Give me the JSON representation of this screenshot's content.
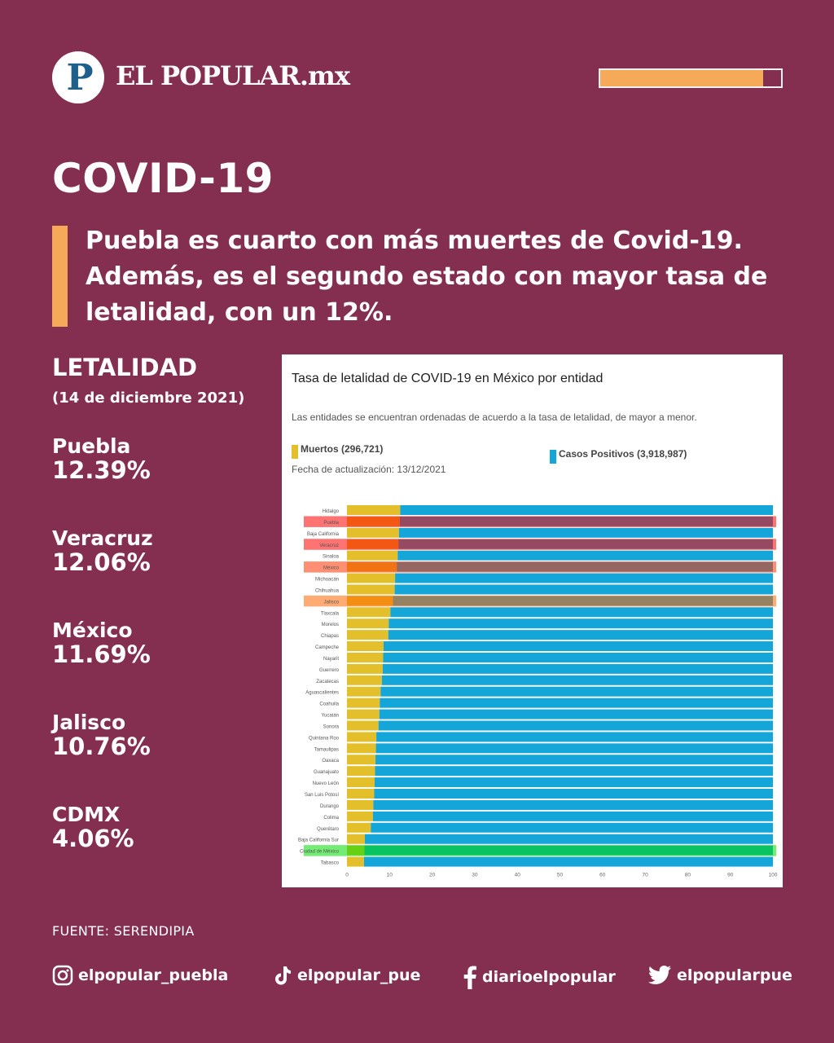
{
  "brand": {
    "logo_letter": "P",
    "name": "EL POPULAR.mx"
  },
  "progress": {
    "fraction": 0.9
  },
  "title": "COVID-19",
  "headline": "Puebla es cuarto con más muertes de Covid-19. Además, es el segundo estado con mayor tasa de letalidad, con un 12%.",
  "sidebar": {
    "title": "LETALIDAD",
    "date": "(14 de diciembre 2021)",
    "stats": [
      {
        "name": "Puebla",
        "value": "12.39%"
      },
      {
        "name": "Veracruz",
        "value": "12.06%"
      },
      {
        "name": "México",
        "value": "11.69%"
      },
      {
        "name": "Jalisco",
        "value": "10.76%"
      },
      {
        "name": "CDMX",
        "value": "4.06%"
      }
    ]
  },
  "chart_data": {
    "type": "bar",
    "orientation": "horizontal",
    "stacked": true,
    "title": "Tasa de letalidad de COVID-19 en México por entidad",
    "subtitle": "Las entidades se encuentran ordenadas de acuerdo a la tasa de letalidad, de mayor a menor.",
    "update_text": "Fecha de actualización: 13/12/2021",
    "legend": [
      {
        "label": "Muertos (296,721)",
        "color": "#e3c02b"
      },
      {
        "label": "Casos Positivos (3,918,987)",
        "color": "#14a5d9"
      }
    ],
    "xlim": [
      0,
      100
    ],
    "xticks": [
      0,
      10,
      20,
      30,
      40,
      50,
      60,
      70,
      80,
      90,
      100
    ],
    "categories": [
      "Hidalgo",
      "Puebla",
      "Baja California",
      "Veracruz",
      "Sinaloa",
      "México",
      "Michoacán",
      "Chihuahua",
      "Jalisco",
      "Tlaxcala",
      "Morelos",
      "Chiapas",
      "Campeche",
      "Nayarit",
      "Guerrero",
      "Zacatecas",
      "Aguascalientes",
      "Coahuila",
      "Yucatán",
      "Sonora",
      "Quintana Roo",
      "Tamaulipas",
      "Oaxaca",
      "Guanajuato",
      "Nuevo León",
      "San Luis Potosí",
      "Durango",
      "Colima",
      "Querétaro",
      "Baja California Sur",
      "Ciudad de México",
      "Tabasco"
    ],
    "series": [
      {
        "name": "Muertos",
        "values": [
          12.5,
          12.4,
          12.2,
          12.1,
          11.9,
          11.7,
          11.3,
          11.2,
          10.8,
          10.2,
          9.8,
          9.7,
          8.6,
          8.5,
          8.4,
          8.2,
          7.9,
          7.7,
          7.6,
          7.4,
          6.9,
          6.8,
          6.7,
          6.6,
          6.5,
          6.4,
          6.2,
          6.1,
          5.6,
          4.2,
          4.1,
          4.0
        ],
        "color": "#e3c02b"
      },
      {
        "name": "Casos Positivos",
        "values": [
          87.5,
          87.6,
          87.8,
          87.9,
          88.1,
          88.3,
          88.7,
          88.8,
          89.2,
          89.8,
          90.2,
          90.3,
          91.4,
          91.5,
          91.6,
          91.8,
          92.1,
          92.3,
          92.4,
          92.6,
          93.1,
          93.2,
          93.3,
          93.4,
          93.5,
          93.6,
          93.8,
          93.9,
          94.4,
          95.8,
          95.9,
          96.0
        ],
        "color": "#14a5d9"
      }
    ],
    "highlights": [
      {
        "category": "Puebla",
        "color": "#ff0000"
      },
      {
        "category": "Veracruz",
        "color": "#ff0000"
      },
      {
        "category": "México",
        "color": "#ff3300"
      },
      {
        "category": "Jalisco",
        "color": "#ff6600"
      },
      {
        "category": "Ciudad de México",
        "color": "#00dd00"
      }
    ]
  },
  "source": "FUENTE: SERENDIPIA",
  "social": {
    "instagram": {
      "icon": "instagram-icon",
      "handle": "elpopular_puebla"
    },
    "tiktok": {
      "icon": "tiktok-icon",
      "handle": "elpopular_pue"
    },
    "facebook": {
      "icon": "facebook-icon",
      "handle": "diarioelpopular"
    },
    "twitter": {
      "icon": "twitter-icon",
      "handle": "elpopularpue"
    }
  }
}
